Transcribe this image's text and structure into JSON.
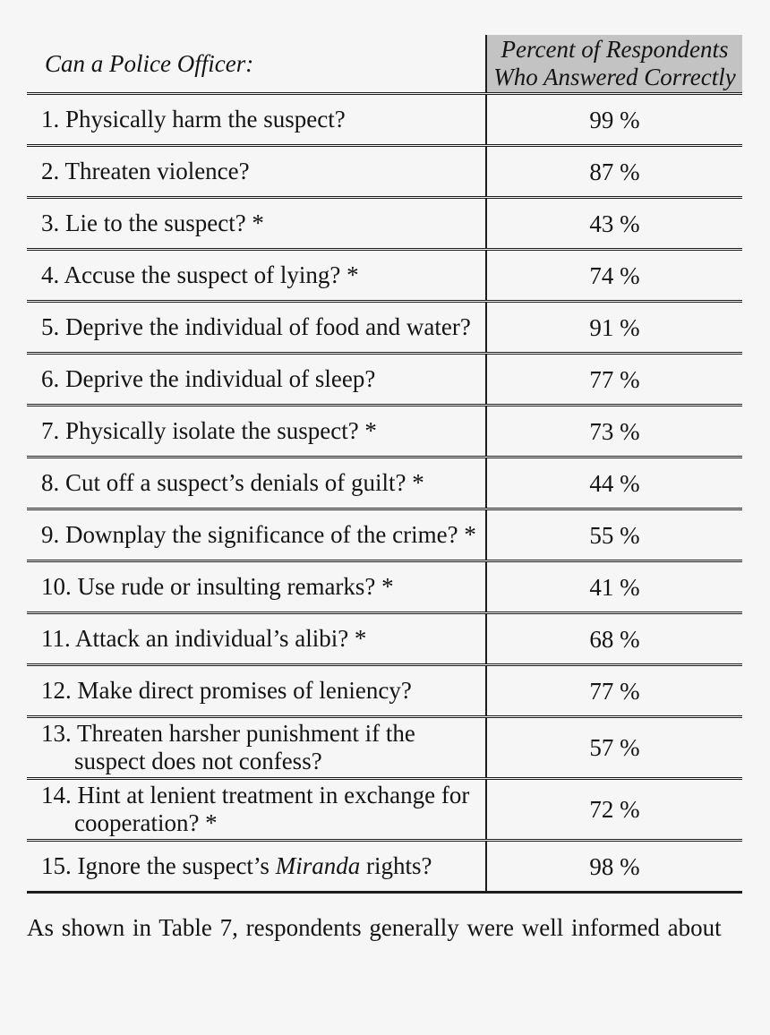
{
  "colors": {
    "page_bg": "#f6f6f6",
    "header_bg": "#c3c3c3",
    "line": "#1c1c1c",
    "text": "#141414"
  },
  "table": {
    "header": {
      "questions_label": "Can a Police Officer:",
      "percent_label_line1": "Percent of Respondents",
      "percent_label_line2": "Who Answered Correctly"
    },
    "rows": [
      {
        "segments": [
          {
            "text": "1. Physically harm the suspect?"
          }
        ],
        "percent": "99 %"
      },
      {
        "segments": [
          {
            "text": "2. Threaten violence?"
          }
        ],
        "percent": "87 %"
      },
      {
        "segments": [
          {
            "text": "3. Lie to the suspect? *"
          }
        ],
        "percent": "43 %"
      },
      {
        "segments": [
          {
            "text": "4. Accuse the suspect of lying? *"
          }
        ],
        "percent": "74 %"
      },
      {
        "segments": [
          {
            "text": "5. Deprive the individual of food and water?"
          }
        ],
        "percent": "91 %"
      },
      {
        "segments": [
          {
            "text": "6. Deprive the individual of sleep?"
          }
        ],
        "percent": "77 %"
      },
      {
        "segments": [
          {
            "text": "7. Physically isolate the suspect? *"
          }
        ],
        "percent": "73 %"
      },
      {
        "segments": [
          {
            "text": "8. Cut off a suspect’s denials of guilt? *"
          }
        ],
        "percent": "44 %"
      },
      {
        "segments": [
          {
            "text": "9. Downplay the significance of the crime? *"
          }
        ],
        "percent": "55 %"
      },
      {
        "segments": [
          {
            "text": "10. Use rude or insulting remarks? *"
          }
        ],
        "percent": "41 %"
      },
      {
        "segments": [
          {
            "text": "11. Attack an individual’s alibi? *"
          }
        ],
        "percent": "68 %"
      },
      {
        "segments": [
          {
            "text": "12. Make direct promises of leniency?"
          }
        ],
        "percent": "77 %"
      },
      {
        "segments": [
          {
            "text": "13. Threaten harsher punishment if the suspect does not confess?"
          }
        ],
        "percent": "57 %"
      },
      {
        "segments": [
          {
            "text": "14. Hint at lenient treatment in exchange for cooperation? *"
          }
        ],
        "percent": "72 %"
      },
      {
        "segments": [
          {
            "text": "15. Ignore the suspect’s "
          },
          {
            "text": "Miranda",
            "italic": true
          },
          {
            "text": " rights?"
          }
        ],
        "percent": "98 %"
      }
    ]
  },
  "footer": {
    "text": "As shown in Table 7, respondents generally were well informed about"
  }
}
